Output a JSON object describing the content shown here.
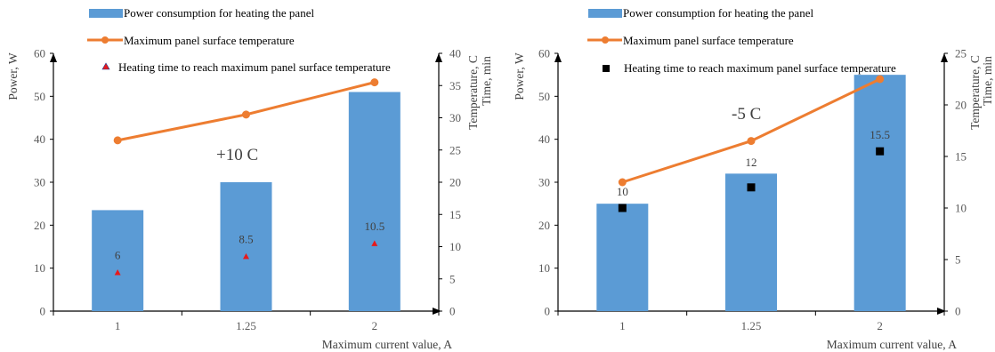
{
  "colors": {
    "bar": "#5b9bd5",
    "line": "#ed7d31",
    "marker_left": "#e8191b",
    "marker_right": "#000000",
    "axis": "#000000",
    "text": "#404040"
  },
  "chart_data": [
    {
      "type": "bar",
      "categories": [
        "1",
        "1.25",
        "2"
      ],
      "xlabel": "Maximum current value, A",
      "ylabel": "Power, W",
      "y2label": "Temperature, C",
      "y3label": "Time, min",
      "ylim": [
        0,
        60
      ],
      "y2lim": [
        0,
        40
      ],
      "yticks": [
        "0",
        "10",
        "20",
        "30",
        "40",
        "50",
        "60"
      ],
      "y2ticks": [
        "0",
        "5",
        "10",
        "15",
        "20",
        "25",
        "30",
        "35",
        "40"
      ],
      "annotation": "+10 C",
      "legend_position": "top",
      "series": [
        {
          "name": "Power consumption for heating the panel",
          "kind": "bar",
          "axis": "left",
          "values": [
            23.5,
            30.0,
            51.0
          ]
        },
        {
          "name": "Maximum panel surface temperature",
          "kind": "line",
          "axis": "right",
          "values": [
            26.5,
            30.5,
            35.5
          ]
        },
        {
          "name": "Heating time to reach maximum panel surface temperature",
          "kind": "marker",
          "marker": "triangle",
          "axis": "right",
          "values": [
            6,
            8.5,
            10.5
          ],
          "labels": [
            "6",
            "8.5",
            "10.5"
          ]
        }
      ]
    },
    {
      "type": "bar",
      "categories": [
        "1",
        "1.25",
        "2"
      ],
      "xlabel": "Maximum current value, A",
      "ylabel": "Power, W",
      "y2label": "Temperature, C",
      "y3label": "Time, min",
      "ylim": [
        0,
        60
      ],
      "y2lim": [
        0,
        25
      ],
      "yticks": [
        "0",
        "10",
        "20",
        "30",
        "40",
        "50",
        "60"
      ],
      "y2ticks": [
        "0",
        "5",
        "10",
        "15",
        "20",
        "25"
      ],
      "annotation": "-5 C",
      "legend_position": "top",
      "series": [
        {
          "name": "Power consumption for heating the panel",
          "kind": "bar",
          "axis": "left",
          "values": [
            25.0,
            32.0,
            55.0
          ]
        },
        {
          "name": "Maximum panel surface temperature",
          "kind": "line",
          "axis": "right",
          "values": [
            12.5,
            16.5,
            22.5
          ]
        },
        {
          "name": "Heating time to reach maximum panel surface temperature",
          "kind": "marker",
          "marker": "square",
          "axis": "right",
          "values": [
            10,
            12,
            15.5
          ],
          "labels": [
            "10",
            "12",
            "15.5"
          ]
        }
      ]
    }
  ]
}
